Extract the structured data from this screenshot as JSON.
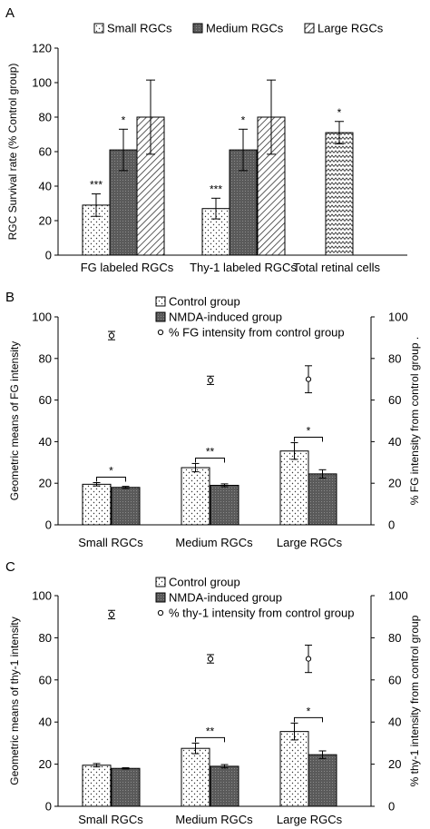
{
  "chart_data": [
    {
      "panel_label": "A",
      "type": "bar",
      "title": "",
      "xlabel": "",
      "ylabel": "RGC Survival rate (% Control group)",
      "ylim": [
        0,
        120
      ],
      "yticks": [
        0,
        20,
        40,
        60,
        80,
        100,
        120
      ],
      "categories": [
        "FG  labeled RGCs",
        "Thy-1 labeled RGCs",
        "Total retinal cells"
      ],
      "legend_position": "top",
      "series": [
        {
          "name": "Small RGCs",
          "pattern": "dots",
          "values": [
            29,
            27,
            null
          ],
          "errors": [
            6.5,
            6,
            null
          ],
          "stars": [
            "***",
            "***",
            ""
          ]
        },
        {
          "name": "Medium RGCs",
          "pattern": "dark",
          "values": [
            61,
            61,
            null
          ],
          "errors": [
            12,
            12,
            null
          ],
          "stars": [
            "*",
            "*",
            ""
          ]
        },
        {
          "name": "Large RGCs",
          "pattern": "diagonal",
          "values": [
            80,
            80,
            null
          ],
          "errors": [
            21.5,
            21.5,
            null
          ],
          "stars": [
            "",
            "",
            ""
          ]
        },
        {
          "name": "",
          "pattern": "zigzag",
          "values": [
            null,
            null,
            71
          ],
          "errors": [
            null,
            null,
            6.5
          ],
          "stars": [
            "",
            "",
            "*"
          ]
        }
      ]
    },
    {
      "panel_label": "B",
      "type": "bar",
      "title": "",
      "xlabel": "",
      "ylabel": "Geometric means of FG intensity",
      "y2label": "% FG intensity from control group .",
      "ylim": [
        0,
        100
      ],
      "y2lim": [
        0,
        100
      ],
      "yticks": [
        0,
        20,
        40,
        60,
        80,
        100
      ],
      "categories": [
        "Small RGCs",
        "Medium RGCs",
        "Large RGCs"
      ],
      "legend_position": "top",
      "series": [
        {
          "name": "Control group",
          "pattern": "dots",
          "values": [
            19.5,
            27.5,
            35.5
          ],
          "errors": [
            0.8,
            2,
            4
          ]
        },
        {
          "name": "NMDA-induced group",
          "pattern": "dark",
          "values": [
            18,
            19,
            24.5
          ],
          "errors": [
            0.5,
            0.7,
            2
          ]
        }
      ],
      "ratio_series": {
        "name": "% FG intensity from control group",
        "values": [
          91,
          69.5,
          70
        ],
        "errors": [
          2,
          2,
          6.5
        ]
      },
      "significance": [
        "*",
        "**",
        "*"
      ]
    },
    {
      "panel_label": "C",
      "type": "bar",
      "title": "",
      "xlabel": "",
      "ylabel": "Geometric means of thy-1 intensity",
      "y2label": "% thy-1 intensity from control group",
      "ylim": [
        0,
        100
      ],
      "y2lim": [
        0,
        100
      ],
      "yticks": [
        0,
        20,
        40,
        60,
        80,
        100
      ],
      "categories": [
        "Small RGCs",
        "Medium RGCs",
        "Large RGCs"
      ],
      "legend_position": "top",
      "series": [
        {
          "name": "Control group",
          "pattern": "dots",
          "values": [
            19.5,
            27.5,
            35.5
          ],
          "errors": [
            0.8,
            2.5,
            4
          ]
        },
        {
          "name": "NMDA-induced group",
          "pattern": "dark",
          "values": [
            18,
            19,
            24.5
          ],
          "errors": [
            0.3,
            0.8,
            1.8
          ]
        }
      ],
      "ratio_series": {
        "name": "% thy-1 intensity from control group",
        "values": [
          91,
          70,
          70
        ],
        "errors": [
          2,
          2,
          6.5
        ]
      },
      "significance": [
        "",
        "**",
        "*"
      ]
    }
  ]
}
